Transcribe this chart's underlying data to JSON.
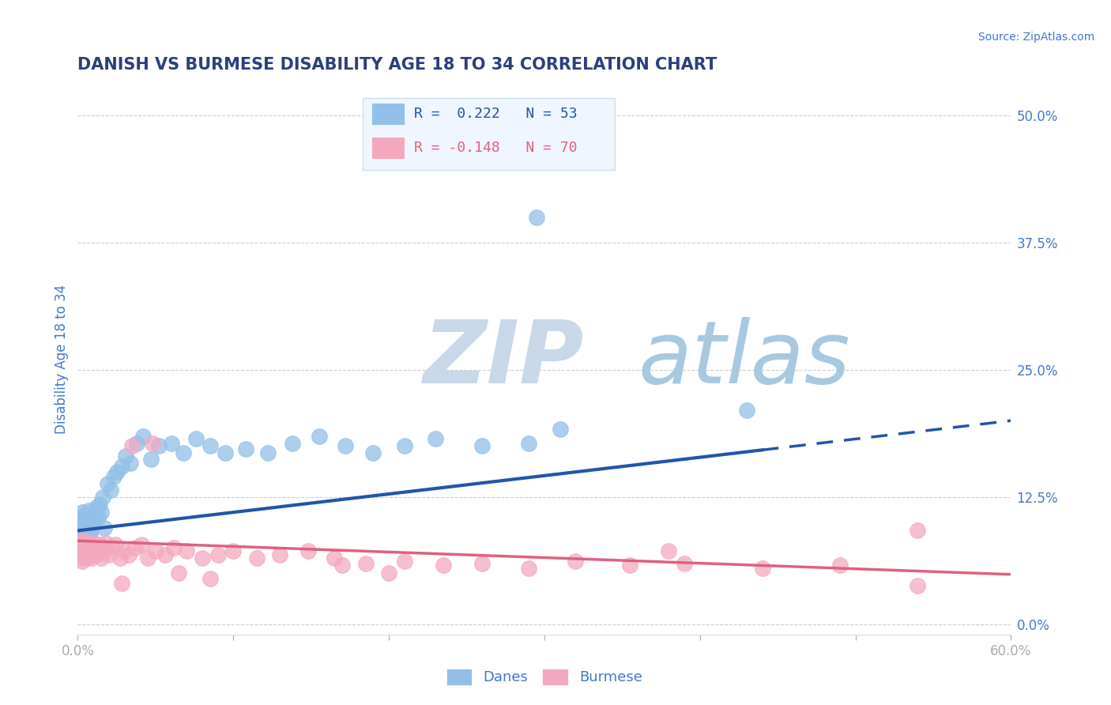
{
  "title": "DANISH VS BURMESE DISABILITY AGE 18 TO 34 CORRELATION CHART",
  "source_text": "Source: ZipAtlas.com",
  "ylabel": "Disability Age 18 to 34",
  "xlim": [
    0.0,
    0.6
  ],
  "ylim": [
    -0.01,
    0.53
  ],
  "xticks": [
    0.0,
    0.1,
    0.2,
    0.3,
    0.4,
    0.5,
    0.6
  ],
  "ytick_labels": [
    "0.0%",
    "12.5%",
    "25.0%",
    "37.5%",
    "50.0%"
  ],
  "ytick_positions": [
    0.0,
    0.125,
    0.25,
    0.375,
    0.5
  ],
  "blue_color": "#92C0E8",
  "pink_color": "#F4A8C0",
  "blue_line_color": "#2255AA",
  "pink_line_color": "#E06080",
  "blue_intercept": 0.092,
  "blue_slope": 0.18,
  "pink_intercept": 0.082,
  "pink_slope": -0.055,
  "danes_N": 53,
  "burmese_N": 70,
  "danes_R": "0.222",
  "burmese_R": "-0.148",
  "danes_scatter_x": [
    0.001,
    0.002,
    0.002,
    0.003,
    0.003,
    0.004,
    0.004,
    0.005,
    0.005,
    0.006,
    0.006,
    0.007,
    0.007,
    0.008,
    0.008,
    0.009,
    0.01,
    0.011,
    0.012,
    0.013,
    0.014,
    0.015,
    0.016,
    0.017,
    0.019,
    0.021,
    0.023,
    0.025,
    0.028,
    0.031,
    0.034,
    0.038,
    0.042,
    0.047,
    0.052,
    0.06,
    0.068,
    0.076,
    0.085,
    0.095,
    0.108,
    0.122,
    0.138,
    0.155,
    0.172,
    0.19,
    0.21,
    0.23,
    0.26,
    0.29,
    0.31,
    0.43,
    0.295
  ],
  "danes_scatter_y": [
    0.1,
    0.095,
    0.105,
    0.088,
    0.11,
    0.092,
    0.098,
    0.085,
    0.108,
    0.09,
    0.102,
    0.095,
    0.112,
    0.088,
    0.105,
    0.095,
    0.102,
    0.108,
    0.115,
    0.105,
    0.118,
    0.11,
    0.125,
    0.095,
    0.138,
    0.132,
    0.145,
    0.15,
    0.155,
    0.165,
    0.158,
    0.178,
    0.185,
    0.162,
    0.175,
    0.178,
    0.168,
    0.182,
    0.175,
    0.168,
    0.172,
    0.168,
    0.178,
    0.185,
    0.175,
    0.168,
    0.175,
    0.182,
    0.175,
    0.178,
    0.192,
    0.21,
    0.4
  ],
  "burmese_scatter_x": [
    0.001,
    0.001,
    0.002,
    0.002,
    0.002,
    0.003,
    0.003,
    0.003,
    0.004,
    0.004,
    0.004,
    0.005,
    0.005,
    0.006,
    0.006,
    0.006,
    0.007,
    0.007,
    0.008,
    0.008,
    0.009,
    0.009,
    0.01,
    0.011,
    0.012,
    0.013,
    0.014,
    0.015,
    0.016,
    0.018,
    0.02,
    0.022,
    0.024,
    0.027,
    0.03,
    0.033,
    0.037,
    0.041,
    0.045,
    0.05,
    0.056,
    0.062,
    0.07,
    0.08,
    0.09,
    0.1,
    0.115,
    0.13,
    0.148,
    0.165,
    0.185,
    0.21,
    0.235,
    0.26,
    0.29,
    0.32,
    0.355,
    0.39,
    0.44,
    0.49,
    0.035,
    0.048,
    0.065,
    0.085,
    0.028,
    0.17,
    0.2,
    0.38,
    0.54,
    0.54
  ],
  "burmese_scatter_y": [
    0.075,
    0.068,
    0.072,
    0.065,
    0.08,
    0.07,
    0.078,
    0.062,
    0.075,
    0.068,
    0.082,
    0.07,
    0.078,
    0.065,
    0.072,
    0.08,
    0.068,
    0.075,
    0.07,
    0.078,
    0.065,
    0.072,
    0.08,
    0.075,
    0.068,
    0.072,
    0.078,
    0.065,
    0.072,
    0.08,
    0.068,
    0.075,
    0.078,
    0.065,
    0.072,
    0.068,
    0.075,
    0.078,
    0.065,
    0.072,
    0.068,
    0.075,
    0.072,
    0.065,
    0.068,
    0.072,
    0.065,
    0.068,
    0.072,
    0.065,
    0.06,
    0.062,
    0.058,
    0.06,
    0.055,
    0.062,
    0.058,
    0.06,
    0.055,
    0.058,
    0.175,
    0.178,
    0.05,
    0.045,
    0.04,
    0.058,
    0.05,
    0.072,
    0.038,
    0.092
  ],
  "background_color": "#FFFFFF",
  "grid_color": "#CCCCCC",
  "title_color": "#2B3F7E",
  "tick_color": "#4477CC",
  "watermark_color": "#DCE8F5",
  "legend_box_color": "#F0F6FF",
  "legend_border_color": "#CCDDF0"
}
